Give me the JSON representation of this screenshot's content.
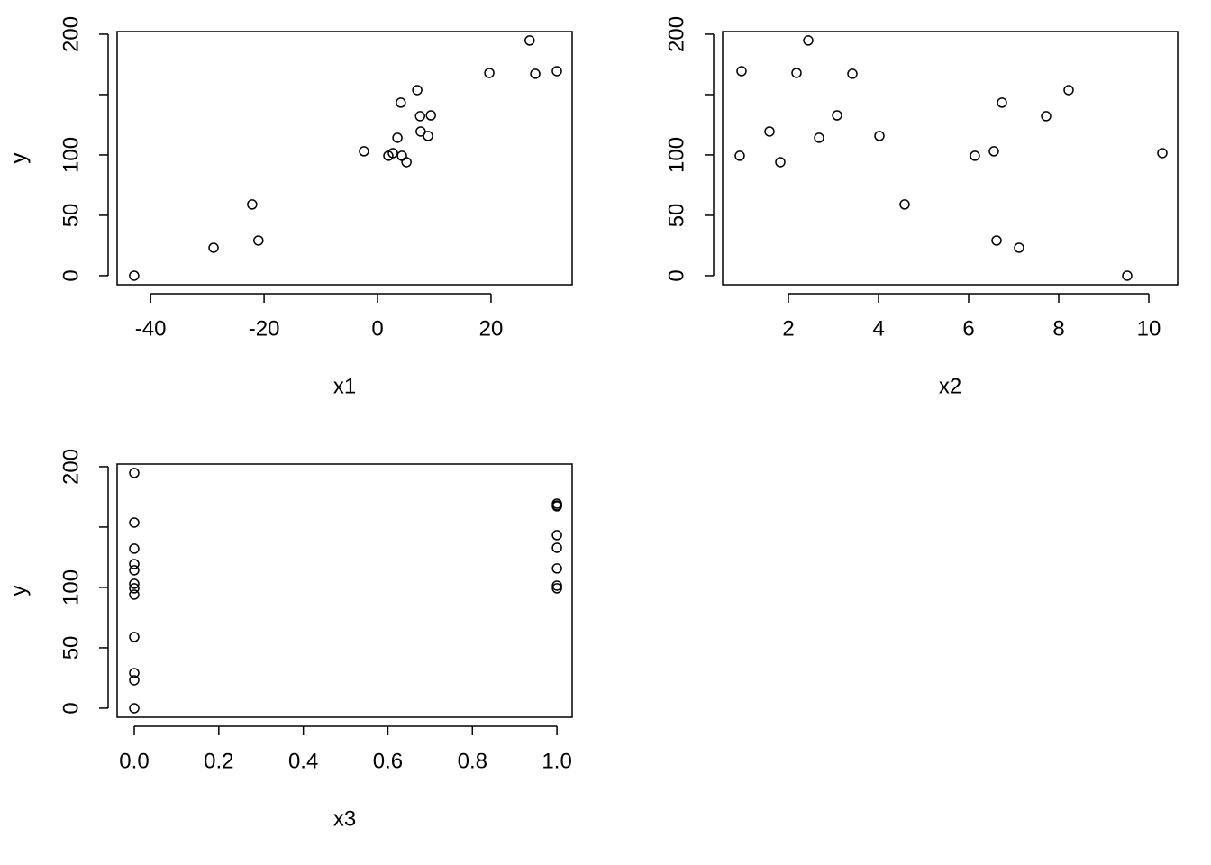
{
  "chart_data": [
    {
      "type": "scatter",
      "x_label": "x1",
      "y_label": "y",
      "x": [
        -42.9,
        -28.9,
        -22.1,
        -21.0,
        -2.4,
        1.9,
        2.7,
        3.5,
        4.1,
        4.3,
        5.1,
        7.0,
        7.5,
        7.6,
        8.9,
        9.4,
        19.7,
        26.8,
        27.8,
        31.6
      ],
      "values": [
        0,
        23.1,
        59,
        29.1,
        103,
        99.3,
        101.5,
        114.2,
        143.3,
        99.3,
        94,
        153.7,
        132.1,
        119.4,
        115.7,
        132.8,
        167.9,
        194.8,
        167.2,
        169.4
      ],
      "xlim": [
        -45.9,
        34.3
      ],
      "ylim": [
        -7.5,
        202.2
      ],
      "xticks": [
        -40,
        -20,
        0,
        20
      ],
      "yticks": [
        0,
        50,
        100,
        {
          "value": 150,
          "label": null
        },
        200
      ]
    },
    {
      "type": "scatter",
      "x_label": "x2",
      "y_label": "y",
      "x": [
        9.52,
        7.12,
        4.58,
        6.62,
        6.56,
        0.92,
        10.3,
        2.68,
        6.74,
        6.14,
        1.82,
        8.22,
        7.72,
        1.58,
        4.02,
        3.08,
        2.18,
        2.44,
        3.42,
        0.96
      ],
      "values": [
        0,
        23.1,
        59,
        29.1,
        103,
        99.3,
        101.5,
        114.2,
        143.3,
        99.3,
        94,
        153.7,
        132.1,
        119.4,
        115.7,
        132.8,
        167.9,
        194.8,
        167.2,
        169.4
      ],
      "xlim": [
        0.54,
        10.64
      ],
      "ylim": [
        -7.5,
        202.2
      ],
      "xticks": [
        2,
        4,
        6,
        8,
        10
      ],
      "yticks": [
        0,
        50,
        100,
        {
          "value": 150,
          "label": null
        },
        200
      ]
    },
    {
      "type": "scatter",
      "x_label": "x3",
      "y_label": "y",
      "x": [
        0,
        0,
        0,
        0,
        0,
        0,
        1,
        0,
        1,
        1,
        0,
        0,
        0,
        0,
        1,
        1,
        1,
        0,
        1,
        1
      ],
      "values": [
        0,
        23.1,
        59,
        29.1,
        103,
        99.3,
        101.5,
        114.2,
        143.3,
        99.3,
        94,
        153.7,
        132.1,
        119.4,
        115.7,
        132.8,
        167.9,
        194.8,
        167.2,
        169.4
      ],
      "xlim": [
        -0.0405,
        1.036
      ],
      "ylim": [
        -7.5,
        202.2
      ],
      "xticks": [
        {
          "value": 0,
          "label": "0.0"
        },
        0.2,
        0.4,
        0.6,
        0.8,
        {
          "value": 1,
          "label": "1.0"
        }
      ],
      "yticks": [
        0,
        50,
        100,
        {
          "value": 150,
          "label": null
        },
        200
      ]
    }
  ]
}
